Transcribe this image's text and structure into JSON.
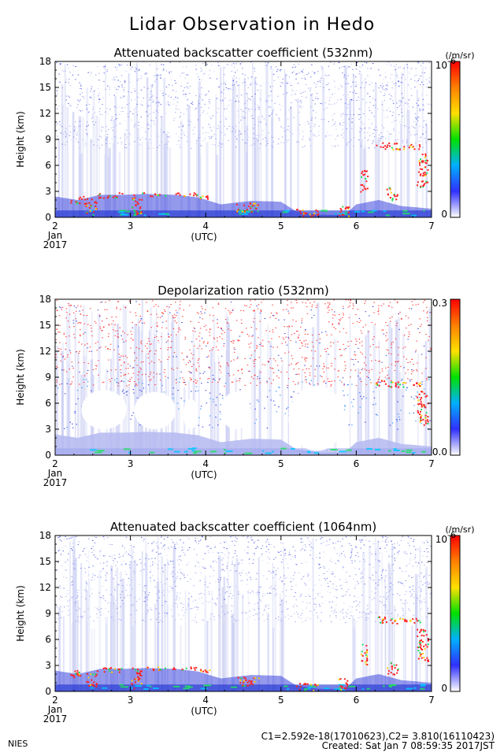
{
  "title": "Lidar Observation in Hedo",
  "footer": {
    "org": "NIES",
    "calib": "C1=2.592e-18(17010623),C2= 3.810(16110423)",
    "created": "Created: Sat Jan  7 08:59:35 2017JST"
  },
  "colors": {
    "background": "#ffffff",
    "faint_signal": "#c8ccf2",
    "aerosol": "#3c46dc",
    "cloud": "#ff2020",
    "noise_blue": "#2030e0",
    "noise_red": "#ff2020",
    "colorbar": [
      "#ffffff",
      "#3030ff",
      "#00b0ff",
      "#00e000",
      "#ffe000",
      "#ff8000",
      "#ff0000"
    ]
  },
  "chart_data": [
    {
      "type": "heatmap",
      "title": "Attenuated backscatter coefficient (532nm)",
      "ylabel": "Height (km)",
      "xlabel": "(UTC)",
      "x_ticks": [
        "2",
        "3",
        "4",
        "5",
        "6",
        "7"
      ],
      "x_sub": [
        "Jan",
        "2017"
      ],
      "xlim": [
        2,
        7
      ],
      "y_ticks": [
        "0",
        "3",
        "6",
        "9",
        "12",
        "15",
        "18"
      ],
      "ylim": [
        0,
        18
      ],
      "colorbar": {
        "min_label": "0",
        "max_label": "10",
        "unit": "(/m/sr)",
        "exponent": "-6"
      },
      "aerosol_top_km": [
        [
          2.0,
          2.4
        ],
        [
          2.3,
          2.0
        ],
        [
          2.6,
          2.6
        ],
        [
          2.9,
          2.6
        ],
        [
          3.2,
          2.7
        ],
        [
          3.6,
          2.6
        ],
        [
          3.9,
          2.3
        ],
        [
          4.2,
          1.5
        ],
        [
          4.6,
          1.9
        ],
        [
          5.0,
          1.8
        ],
        [
          5.2,
          0.7
        ],
        [
          5.5,
          0.3
        ],
        [
          5.85,
          0.3
        ],
        [
          6.0,
          1.5
        ],
        [
          6.3,
          2.0
        ],
        [
          6.6,
          1.3
        ],
        [
          7.0,
          1.0
        ]
      ],
      "cloud_layers": [
        {
          "x": [
            2.2,
            2.4
          ],
          "y": [
            1.6,
            2.5
          ]
        },
        {
          "x": [
            2.4,
            2.55
          ],
          "y": [
            0.5,
            2.2
          ]
        },
        {
          "x": [
            2.55,
            2.9
          ],
          "y": [
            2.3,
            2.9
          ]
        },
        {
          "x": [
            3.0,
            3.15
          ],
          "y": [
            0.4,
            2.8
          ]
        },
        {
          "x": [
            3.15,
            3.9
          ],
          "y": [
            2.5,
            2.9
          ]
        },
        {
          "x": [
            3.9,
            4.05
          ],
          "y": [
            2.2,
            2.6
          ]
        },
        {
          "x": [
            4.4,
            4.7
          ],
          "y": [
            0.7,
            1.8
          ]
        },
        {
          "x": [
            5.2,
            5.5
          ],
          "y": [
            0.2,
            1.0
          ]
        },
        {
          "x": [
            5.75,
            5.9
          ],
          "y": [
            0.2,
            1.6
          ]
        },
        {
          "x": [
            6.05,
            6.15
          ],
          "y": [
            3.0,
            5.5
          ]
        },
        {
          "x": [
            6.25,
            6.55
          ],
          "y": [
            7.9,
            8.7
          ]
        },
        {
          "x": [
            6.55,
            6.85
          ],
          "y": [
            7.9,
            8.5
          ]
        },
        {
          "x": [
            6.8,
            6.95
          ],
          "y": [
            3.5,
            7.5
          ]
        },
        {
          "x": [
            6.4,
            6.55
          ],
          "y": [
            2.0,
            3.5
          ]
        }
      ],
      "noise_upper_km": 7
    },
    {
      "type": "heatmap",
      "title": "Depolarization ratio (532nm)",
      "ylabel": "Height (km)",
      "xlabel": "(UTC)",
      "x_ticks": [
        "2",
        "3",
        "4",
        "5",
        "6",
        "7"
      ],
      "x_sub": [
        "Jan",
        "2017"
      ],
      "xlim": [
        2,
        7
      ],
      "y_ticks": [
        "0",
        "3",
        "6",
        "9",
        "12",
        "15",
        "18"
      ],
      "ylim": [
        0,
        18
      ],
      "colorbar": {
        "min_label": "0.0",
        "max_label": "0.3",
        "unit": "",
        "exponent": ""
      },
      "aerosol_top_km": [
        [
          2.0,
          2.4
        ],
        [
          2.3,
          2.0
        ],
        [
          2.6,
          2.6
        ],
        [
          2.9,
          2.6
        ],
        [
          3.2,
          2.7
        ],
        [
          3.6,
          2.6
        ],
        [
          3.9,
          2.3
        ],
        [
          4.2,
          1.5
        ],
        [
          4.6,
          1.9
        ],
        [
          5.0,
          1.8
        ],
        [
          5.2,
          0.7
        ],
        [
          5.5,
          0.3
        ],
        [
          5.85,
          0.3
        ],
        [
          6.0,
          1.5
        ],
        [
          6.3,
          2.0
        ],
        [
          6.6,
          1.3
        ],
        [
          7.0,
          1.0
        ]
      ],
      "cloud_layers": [
        {
          "x": [
            6.25,
            6.55
          ],
          "y": [
            7.9,
            8.7
          ]
        },
        {
          "x": [
            6.55,
            6.85
          ],
          "y": [
            7.9,
            8.5
          ]
        },
        {
          "x": [
            6.8,
            6.95
          ],
          "y": [
            3.5,
            7.5
          ]
        }
      ],
      "noise_upper_km": 7
    },
    {
      "type": "heatmap",
      "title": "Attenuated backscatter coefficient (1064nm)",
      "ylabel": "Height (km)",
      "xlabel": "(UTC)",
      "x_ticks": [
        "2",
        "3",
        "4",
        "5",
        "6",
        "7"
      ],
      "x_sub": [
        "Jan",
        "2017"
      ],
      "xlim": [
        2,
        7
      ],
      "y_ticks": [
        "0",
        "3",
        "6",
        "9",
        "12",
        "15",
        "18"
      ],
      "ylim": [
        0,
        18
      ],
      "colorbar": {
        "min_label": "0",
        "max_label": "10",
        "unit": "(/m/sr)",
        "exponent": "-6"
      },
      "aerosol_top_km": [
        [
          2.0,
          2.4
        ],
        [
          2.3,
          2.0
        ],
        [
          2.6,
          2.6
        ],
        [
          2.9,
          2.6
        ],
        [
          3.2,
          2.7
        ],
        [
          3.6,
          2.6
        ],
        [
          3.9,
          2.3
        ],
        [
          4.2,
          1.5
        ],
        [
          4.6,
          1.9
        ],
        [
          5.0,
          1.8
        ],
        [
          5.2,
          0.7
        ],
        [
          5.5,
          0.3
        ],
        [
          5.85,
          0.3
        ],
        [
          6.0,
          1.5
        ],
        [
          6.3,
          2.0
        ],
        [
          6.6,
          1.3
        ],
        [
          7.0,
          1.0
        ]
      ],
      "cloud_layers": [
        {
          "x": [
            2.2,
            2.4
          ],
          "y": [
            1.6,
            2.5
          ]
        },
        {
          "x": [
            2.4,
            2.55
          ],
          "y": [
            0.5,
            2.2
          ]
        },
        {
          "x": [
            2.55,
            2.9
          ],
          "y": [
            2.3,
            2.9
          ]
        },
        {
          "x": [
            3.0,
            3.15
          ],
          "y": [
            0.4,
            2.8
          ]
        },
        {
          "x": [
            3.15,
            3.9
          ],
          "y": [
            2.5,
            2.9
          ]
        },
        {
          "x": [
            3.9,
            4.05
          ],
          "y": [
            2.2,
            2.6
          ]
        },
        {
          "x": [
            4.4,
            4.7
          ],
          "y": [
            0.7,
            1.8
          ]
        },
        {
          "x": [
            5.2,
            5.5
          ],
          "y": [
            0.2,
            1.0
          ]
        },
        {
          "x": [
            5.75,
            5.9
          ],
          "y": [
            0.2,
            1.6
          ]
        },
        {
          "x": [
            6.05,
            6.15
          ],
          "y": [
            3.0,
            5.5
          ]
        },
        {
          "x": [
            6.25,
            6.55
          ],
          "y": [
            7.9,
            8.7
          ]
        },
        {
          "x": [
            6.55,
            6.85
          ],
          "y": [
            7.9,
            8.5
          ]
        },
        {
          "x": [
            6.8,
            6.95
          ],
          "y": [
            3.5,
            7.5
          ]
        },
        {
          "x": [
            6.4,
            6.55
          ],
          "y": [
            2.0,
            3.5
          ]
        }
      ],
      "noise_upper_km": 7
    }
  ]
}
